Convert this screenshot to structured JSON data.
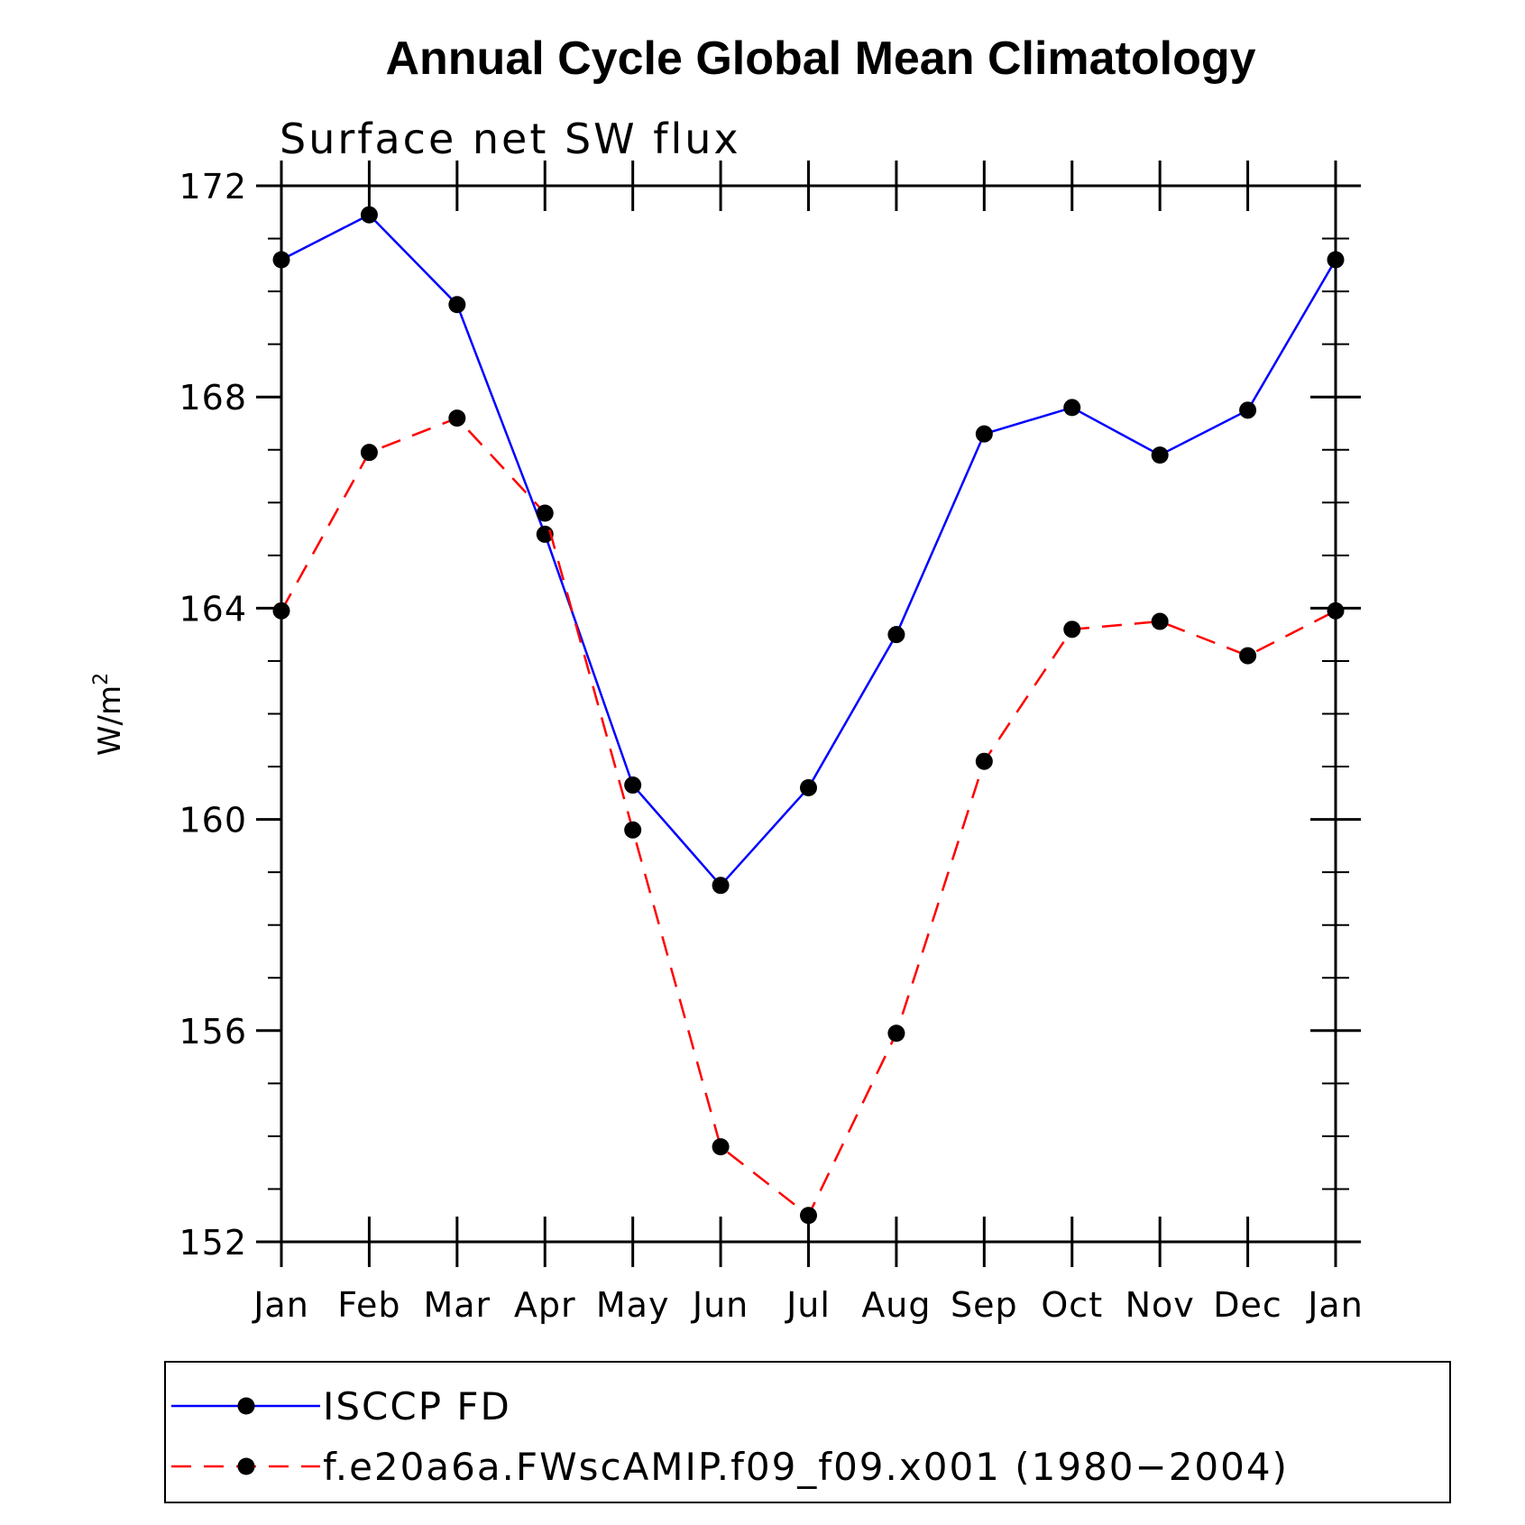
{
  "chart_data": {
    "type": "line",
    "title": "Annual Cycle Global Mean Climatology",
    "subtitle": "Surface net SW flux",
    "xlabel": "",
    "ylabel": "W/m",
    "ylabel_superscript": "2",
    "categories": [
      "Jan",
      "Feb",
      "Mar",
      "Apr",
      "May",
      "Jun",
      "Jul",
      "Aug",
      "Sep",
      "Oct",
      "Nov",
      "Dec",
      "Jan"
    ],
    "ylim": [
      152,
      172
    ],
    "yticks": [
      152,
      156,
      160,
      164,
      168,
      172
    ],
    "yminor_step": 1,
    "legend_position": "bottom",
    "series": [
      {
        "name": "ISCCP FD",
        "color": "#0000ff",
        "dash": "solid",
        "values": [
          170.6,
          171.45,
          169.75,
          165.4,
          160.65,
          158.75,
          160.6,
          163.5,
          167.3,
          167.8,
          166.9,
          167.75,
          170.6
        ]
      },
      {
        "name": "f.e20a6a.FWscAMIP.f09_f09.x001 (1980−2004)",
        "color": "#ff0000",
        "dash": "dashed",
        "values": [
          163.95,
          166.95,
          167.6,
          165.8,
          159.8,
          153.8,
          152.5,
          155.95,
          161.1,
          163.6,
          163.75,
          163.1,
          163.95
        ]
      }
    ]
  }
}
